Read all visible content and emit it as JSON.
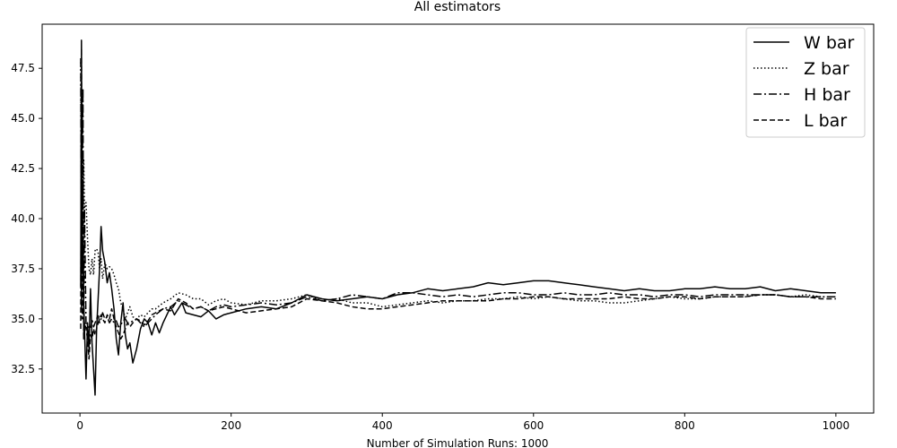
{
  "chart_data": {
    "type": "line",
    "title": "All estimators",
    "xlabel": "Number of Simulation Runs: 1000",
    "ylabel": "",
    "xlim": [
      -50,
      1050
    ],
    "ylim": [
      30.3,
      49.7
    ],
    "xticks": [
      0,
      200,
      400,
      600,
      800,
      1000
    ],
    "yticks": [
      32.5,
      35.0,
      37.5,
      40.0,
      42.5,
      45.0,
      47.5
    ],
    "ytick_labels": [
      "32.5",
      "35.0",
      "37.5",
      "40.0",
      "42.5",
      "45.0",
      "47.5"
    ],
    "grid": false,
    "legend": "top-right",
    "series": [
      {
        "name": "W bar",
        "style": "solid",
        "x": [
          1,
          2,
          3,
          4,
          5,
          6,
          8,
          10,
          12,
          14,
          16,
          18,
          20,
          22,
          24,
          26,
          28,
          30,
          33,
          36,
          39,
          42,
          45,
          48,
          51,
          54,
          57,
          60,
          63,
          66,
          70,
          75,
          80,
          85,
          90,
          95,
          100,
          105,
          110,
          115,
          120,
          125,
          130,
          135,
          140,
          150,
          160,
          170,
          180,
          190,
          200,
          220,
          240,
          260,
          280,
          300,
          320,
          340,
          360,
          380,
          400,
          420,
          440,
          460,
          480,
          500,
          520,
          540,
          560,
          580,
          600,
          620,
          640,
          660,
          680,
          700,
          720,
          740,
          760,
          780,
          800,
          820,
          840,
          860,
          880,
          900,
          920,
          940,
          960,
          980,
          1000
        ],
        "values": [
          36.6,
          48.9,
          37.5,
          38.7,
          35.8,
          34.5,
          32.0,
          34.8,
          33.5,
          36.5,
          33.8,
          32.5,
          31.2,
          34.5,
          36.0,
          37.5,
          39.6,
          38.4,
          37.8,
          36.8,
          37.3,
          36.5,
          35.5,
          34.0,
          33.2,
          34.8,
          35.8,
          34.2,
          33.5,
          33.8,
          32.8,
          33.5,
          34.5,
          35.0,
          34.8,
          34.2,
          34.8,
          34.3,
          34.8,
          35.2,
          35.6,
          35.2,
          35.5,
          35.8,
          35.3,
          35.2,
          35.1,
          35.4,
          35.0,
          35.2,
          35.3,
          35.5,
          35.6,
          35.5,
          35.8,
          36.2,
          36.0,
          35.9,
          36.0,
          36.1,
          36.0,
          36.2,
          36.3,
          36.5,
          36.4,
          36.5,
          36.6,
          36.8,
          36.7,
          36.8,
          36.9,
          36.9,
          36.8,
          36.7,
          36.6,
          36.5,
          36.4,
          36.5,
          36.4,
          36.4,
          36.5,
          36.5,
          36.6,
          36.5,
          36.5,
          36.6,
          36.4,
          36.5,
          36.4,
          36.3,
          36.3
        ]
      },
      {
        "name": "Z bar",
        "style": "dotted",
        "x": [
          1,
          2,
          3,
          4,
          5,
          6,
          8,
          10,
          12,
          14,
          16,
          18,
          20,
          22,
          24,
          26,
          28,
          30,
          33,
          36,
          39,
          42,
          45,
          48,
          51,
          54,
          57,
          60,
          63,
          66,
          70,
          75,
          80,
          85,
          90,
          95,
          100,
          110,
          120,
          130,
          140,
          150,
          160,
          170,
          180,
          190,
          200,
          220,
          240,
          260,
          280,
          300,
          320,
          340,
          360,
          380,
          400,
          420,
          440,
          460,
          480,
          500,
          520,
          540,
          560,
          580,
          600,
          620,
          640,
          660,
          680,
          700,
          720,
          740,
          760,
          780,
          800,
          820,
          840,
          860,
          880,
          900,
          920,
          940,
          960,
          980,
          1000
        ],
        "values": [
          47.8,
          42.0,
          46.5,
          41.0,
          43.0,
          40.5,
          40.8,
          39.0,
          37.5,
          37.2,
          38.0,
          37.2,
          38.4,
          38.5,
          38.3,
          37.5,
          38.0,
          37.0,
          37.8,
          37.5,
          37.6,
          37.5,
          37.2,
          36.8,
          36.5,
          35.8,
          35.5,
          35.0,
          35.3,
          35.6,
          35.1,
          35.0,
          35.2,
          35.1,
          35.3,
          35.5,
          35.5,
          35.8,
          36.0,
          36.3,
          36.2,
          36.0,
          36.0,
          35.7,
          35.9,
          36.0,
          35.8,
          35.7,
          35.9,
          35.9,
          36.0,
          36.2,
          35.9,
          36.0,
          35.8,
          35.8,
          35.6,
          35.7,
          35.8,
          35.9,
          35.8,
          35.9,
          35.9,
          36.0,
          36.0,
          36.1,
          36.0,
          36.1,
          36.0,
          35.9,
          35.9,
          35.8,
          35.8,
          35.9,
          36.0,
          36.1,
          36.0,
          36.0,
          36.1,
          36.1,
          36.1,
          36.2,
          36.2,
          36.1,
          36.2,
          36.1,
          36.1
        ]
      },
      {
        "name": "H bar",
        "style": "dashdot",
        "x": [
          1,
          2,
          3,
          4,
          5,
          6,
          8,
          10,
          12,
          14,
          16,
          18,
          20,
          22,
          24,
          26,
          28,
          30,
          33,
          36,
          39,
          42,
          45,
          48,
          51,
          54,
          57,
          60,
          63,
          66,
          70,
          75,
          80,
          85,
          90,
          95,
          100,
          110,
          120,
          130,
          140,
          150,
          160,
          170,
          180,
          190,
          200,
          220,
          240,
          260,
          280,
          300,
          320,
          340,
          360,
          380,
          400,
          420,
          440,
          460,
          480,
          500,
          520,
          540,
          560,
          580,
          600,
          620,
          640,
          660,
          680,
          700,
          720,
          740,
          760,
          780,
          800,
          820,
          840,
          860,
          880,
          900,
          920,
          940,
          960,
          980,
          1000
        ],
        "values": [
          48.0,
          35.5,
          41.5,
          46.5,
          34.0,
          40.5,
          34.8,
          34.2,
          34.6,
          34.5,
          35.0,
          34.6,
          34.8,
          35.0,
          35.2,
          34.8,
          35.0,
          35.3,
          35.0,
          35.1,
          34.8,
          35.0,
          34.8,
          34.9,
          34.6,
          34.7,
          34.9,
          35.0,
          34.8,
          34.8,
          34.9,
          35.0,
          34.8,
          34.6,
          34.8,
          35.0,
          35.2,
          35.5,
          35.6,
          35.9,
          35.7,
          35.5,
          35.6,
          35.4,
          35.6,
          35.7,
          35.6,
          35.7,
          35.8,
          35.7,
          35.8,
          36.1,
          35.9,
          36.0,
          36.2,
          36.1,
          36.0,
          36.3,
          36.3,
          36.2,
          36.1,
          36.2,
          36.1,
          36.2,
          36.3,
          36.3,
          36.2,
          36.2,
          36.3,
          36.2,
          36.2,
          36.3,
          36.2,
          36.2,
          36.1,
          36.2,
          36.2,
          36.1,
          36.2,
          36.2,
          36.2,
          36.2,
          36.2,
          36.1,
          36.1,
          36.1,
          36.1
        ]
      },
      {
        "name": "L bar",
        "style": "dashed",
        "x": [
          1,
          2,
          3,
          4,
          5,
          6,
          8,
          10,
          12,
          14,
          16,
          18,
          20,
          22,
          24,
          26,
          28,
          30,
          33,
          36,
          39,
          42,
          45,
          48,
          51,
          54,
          57,
          60,
          63,
          66,
          70,
          75,
          80,
          85,
          90,
          95,
          100,
          110,
          120,
          130,
          140,
          150,
          160,
          170,
          180,
          190,
          200,
          220,
          240,
          260,
          280,
          300,
          320,
          340,
          360,
          380,
          400,
          420,
          440,
          460,
          480,
          500,
          520,
          540,
          560,
          580,
          600,
          620,
          640,
          660,
          680,
          700,
          720,
          740,
          760,
          780,
          800,
          820,
          840,
          860,
          880,
          900,
          920,
          940,
          960,
          980,
          1000
        ],
        "values": [
          34.5,
          48.5,
          35.0,
          42.0,
          34.2,
          34.8,
          34.5,
          34.0,
          33.0,
          34.2,
          34.0,
          34.5,
          34.2,
          34.5,
          34.8,
          35.0,
          35.2,
          35.0,
          34.8,
          35.2,
          35.0,
          35.5,
          35.0,
          34.6,
          34.3,
          34.0,
          34.2,
          34.5,
          34.8,
          34.6,
          34.8,
          35.0,
          34.9,
          34.7,
          34.9,
          35.2,
          35.3,
          35.5,
          35.4,
          36.0,
          35.8,
          35.5,
          35.6,
          35.4,
          35.5,
          35.6,
          35.5,
          35.3,
          35.4,
          35.5,
          35.6,
          36.0,
          35.9,
          35.8,
          35.6,
          35.5,
          35.5,
          35.6,
          35.7,
          35.8,
          35.9,
          35.9,
          35.9,
          35.9,
          36.0,
          36.0,
          36.1,
          36.1,
          36.0,
          36.0,
          36.0,
          36.0,
          36.1,
          36.0,
          36.0,
          36.1,
          36.1,
          36.0,
          36.1,
          36.1,
          36.1,
          36.2,
          36.2,
          36.1,
          36.1,
          36.0,
          36.0
        ]
      }
    ]
  }
}
